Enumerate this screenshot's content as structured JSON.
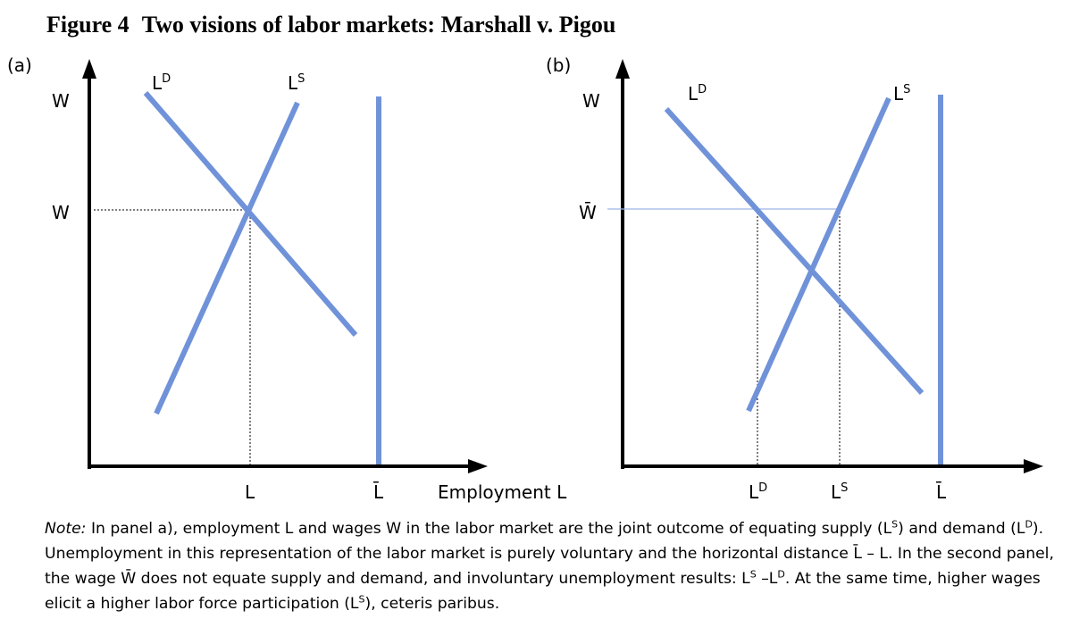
{
  "title": {
    "figure": "Figure 4",
    "text": "Two visions of labor markets: Marshall v. Pigou"
  },
  "panels": [
    {
      "label": "(a)",
      "y_axis_label": "W",
      "wage_tick": "W",
      "demand_label": {
        "base": "L",
        "sup": "D"
      },
      "supply_label": {
        "base": "L",
        "sup": "S"
      },
      "x_ticks": [
        {
          "base": "L"
        },
        {
          "base": "L̄"
        }
      ],
      "x_axis_label": "Employment L"
    },
    {
      "label": "(b)",
      "y_axis_label": "W",
      "wage_tick": "W̄",
      "demand_label": {
        "base": "L",
        "sup": "D"
      },
      "supply_label": {
        "base": "L",
        "sup": "S"
      },
      "x_ticks": [
        {
          "base": "L",
          "sup": "D"
        },
        {
          "base": "L",
          "sup": "S"
        },
        {
          "base": "L̄"
        }
      ]
    }
  ],
  "note": [
    {
      "text": "Note:",
      "style": "italic"
    },
    {
      "text": " In panel a), employment L and wages W in the labor market are the joint outcome of equating supply (L"
    },
    {
      "text": "S",
      "style": "sup"
    },
    {
      "text": ") and demand (L"
    },
    {
      "text": "D",
      "style": "sup"
    },
    {
      "text": "). Unemployment in this representation of the labor market is purely voluntary and the horizontal distance  L̄ – L. In the second panel, the wage  W̄ does not equate supply and demand, and involuntary unemployment results: L"
    },
    {
      "text": "S",
      "style": "sup"
    },
    {
      "text": " –L"
    },
    {
      "text": "D",
      "style": "sup"
    },
    {
      "text": ". At the same time, higher wages elicit a higher labor force participation (L"
    },
    {
      "text": "S",
      "style": "sup"
    },
    {
      "text": "), ceteris paribus."
    }
  ]
}
